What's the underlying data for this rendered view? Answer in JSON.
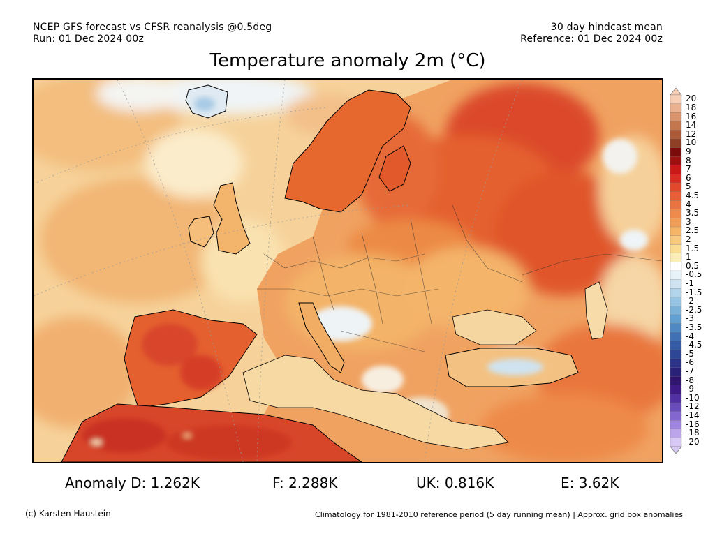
{
  "header": {
    "line1_left": "NCEP GFS forecast vs CFSR reanalysis @0.5deg",
    "line2_left": "Run: 01 Dec 2024 00z",
    "line1_right": "30 day hindcast mean",
    "line2_right": "Reference: 01 Dec 2024 00z"
  },
  "title": "Temperature anomaly 2m (°C)",
  "map": {
    "region": "Europe",
    "colors": {
      "ocean_base": "#f6d29a",
      "land_warm": "#f0a060",
      "land_hot": "#e0522a",
      "land_very_hot": "#c83220",
      "cool_pale": "#e8f1f8",
      "cool_light": "#b9d7ec",
      "coast": "#000000",
      "graticule": "#9a9a9a"
    }
  },
  "colorbar": {
    "labels": [
      "20",
      "18",
      "16",
      "14",
      "12",
      "10",
      "9",
      "8",
      "7",
      "6",
      "5",
      "4.5",
      "4",
      "3.5",
      "3",
      "2.5",
      "2",
      "1.5",
      "1",
      "0.5",
      "-0.5",
      "-1",
      "-1.5",
      "-2",
      "-2.5",
      "-3",
      "-3.5",
      "-4",
      "-4.5",
      "-5",
      "-6",
      "-7",
      "-8",
      "-9",
      "-10",
      "-12",
      "-14",
      "-16",
      "-18",
      "-20"
    ],
    "colors": [
      "#f6cdb5",
      "#e9b190",
      "#d9946d",
      "#c4764f",
      "#ad5a38",
      "#8f3f25",
      "#7a0c0c",
      "#a00f0f",
      "#c81818",
      "#da2c22",
      "#e2482c",
      "#e65f36",
      "#ea7441",
      "#ee8a4b",
      "#f19f58",
      "#f4b567",
      "#f7c97a",
      "#f9dc92",
      "#fbedb6",
      "#ffffff",
      "#e6f1f8",
      "#cde3f1",
      "#b2d4ea",
      "#97c4e2",
      "#7cb2d9",
      "#64a0cf",
      "#5089c2",
      "#4171b4",
      "#355ba6",
      "#2d4796",
      "#2a3387",
      "#2a2278",
      "#30146e",
      "#3e1a86",
      "#5030a2",
      "#6a4cbb",
      "#8466cf",
      "#a084dd",
      "#bda5ea",
      "#d8c8f4"
    ]
  },
  "stats": {
    "d": "Anomaly D: 1.262K",
    "f": "F: 2.288K",
    "uk": "UK: 0.816K",
    "e": "E: 3.62K"
  },
  "footer": {
    "left": "(c) Karsten Haustein",
    "right": "Climatology for 1981-2010 reference period (5 day running mean) | Approx. grid box anomalies"
  }
}
